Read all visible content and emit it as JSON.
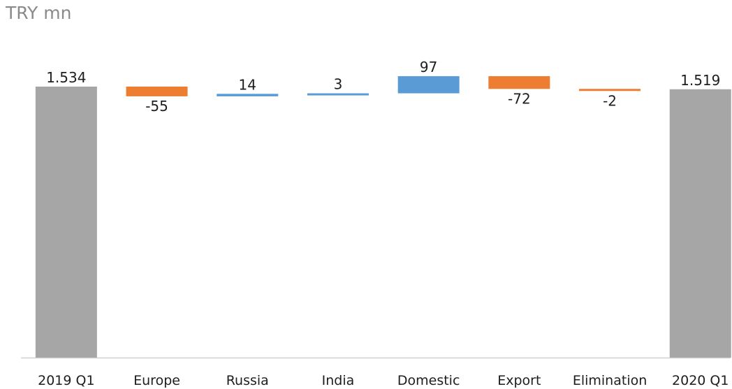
{
  "unit_label": "TRY mn",
  "chart_data": {
    "type": "bar",
    "subtype": "waterfall",
    "categories": [
      "2019 Q1",
      "Europe",
      "Russia",
      "India",
      "Domestic",
      "Export",
      "Elimination",
      "2020 Q1"
    ],
    "values": [
      1534,
      -55,
      14,
      3,
      97,
      -72,
      -2,
      1519
    ],
    "data_labels": [
      "1.534",
      "-55",
      "14",
      "3",
      "97",
      "-72",
      "-2",
      "1.519"
    ],
    "bar_kinds": [
      "total",
      "delta",
      "delta",
      "delta",
      "delta",
      "delta",
      "delta",
      "total"
    ],
    "title": "",
    "ylabel": "TRY mn",
    "xlabel": "",
    "colors": {
      "total": "#a6a6a6",
      "increase": "#5b9bd5",
      "decrease": "#ed7d31",
      "axis": "#d0d0d0"
    },
    "grid": false,
    "legend": "none"
  }
}
